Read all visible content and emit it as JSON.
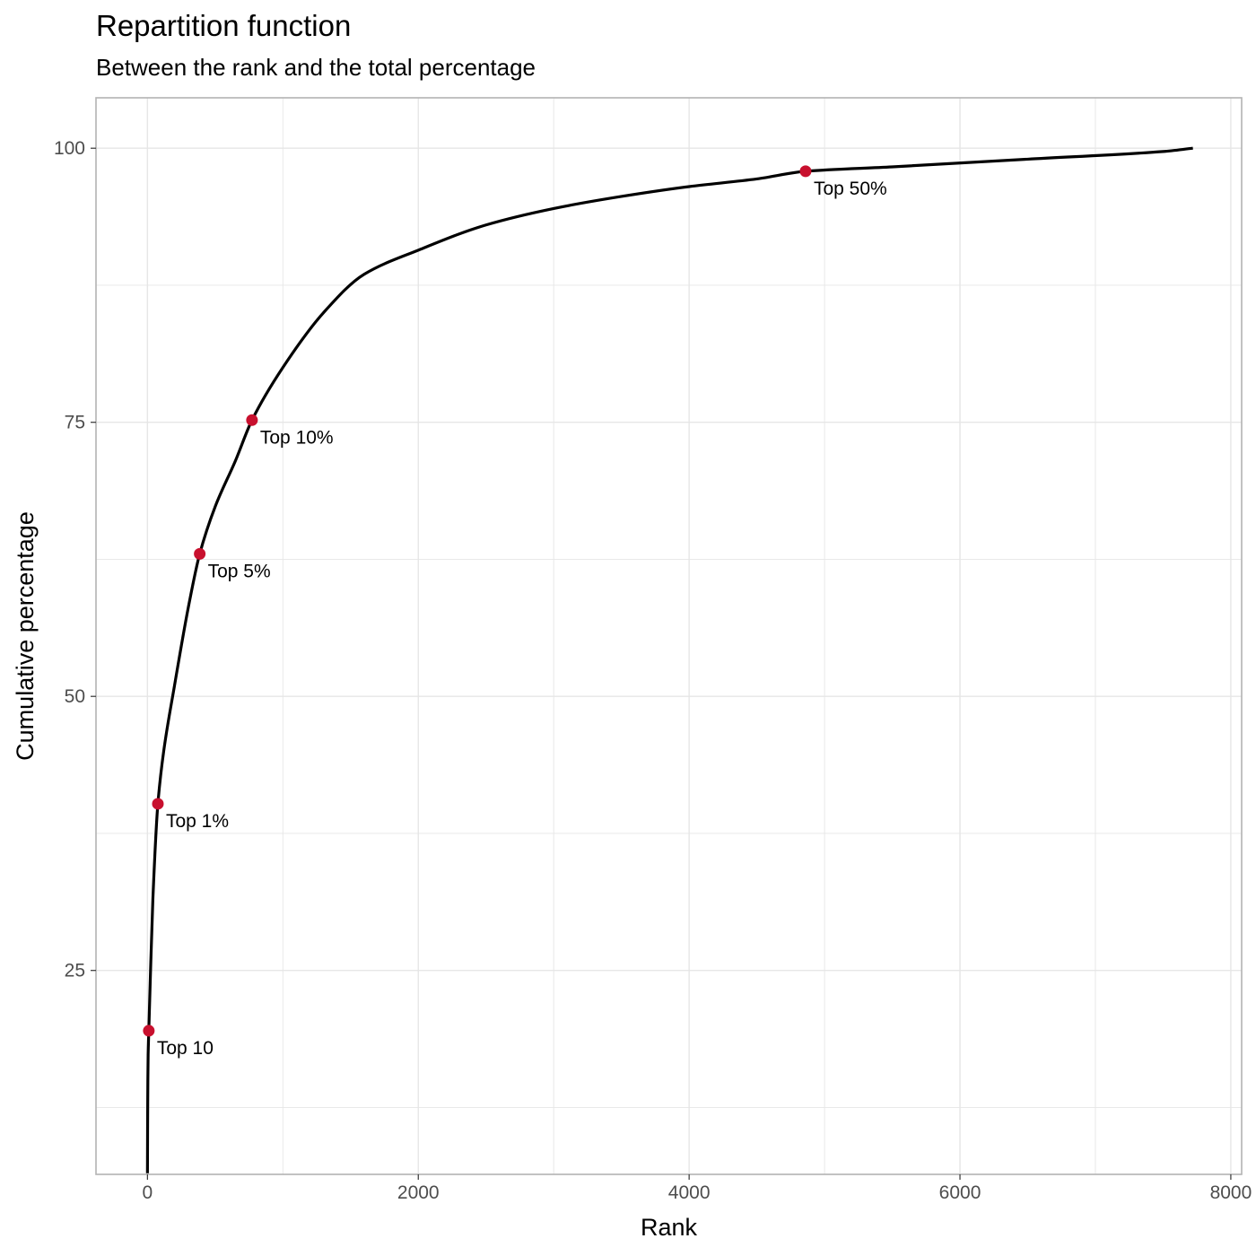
{
  "chart_data": {
    "type": "line",
    "title": "Repartition function",
    "subtitle": "Between the rank and the total percentage",
    "xlabel": "Rank",
    "ylabel": "Cumulative percentage",
    "xlim": [
      -380,
      8080
    ],
    "ylim": [
      6.4,
      104.6
    ],
    "x_ticks": [
      0,
      2000,
      4000,
      6000,
      8000
    ],
    "y_ticks": [
      25,
      50,
      75,
      100
    ],
    "grid": true,
    "colors": {
      "line": "#000000",
      "points": "#c8102e",
      "grid": "#e6e6e6",
      "panel_border": "#b3b3b3"
    },
    "series": [
      {
        "x": [
          0,
          1,
          2,
          3,
          5,
          10,
          20,
          40,
          77,
          120,
          200,
          300,
          386,
          500,
          650,
          772,
          1000,
          1300,
          1600,
          2000,
          2500,
          3000,
          3500,
          4000,
          4500,
          4860,
          5500,
          6500,
          7500,
          7720
        ],
        "y": [
          6.5,
          10.5,
          13.0,
          15.0,
          17.3,
          19.5,
          23.8,
          31.5,
          40.2,
          45.0,
          51.0,
          58.0,
          63.0,
          67.3,
          71.5,
          75.2,
          80.0,
          85.0,
          88.5,
          90.7,
          93.0,
          94.5,
          95.6,
          96.5,
          97.2,
          97.9,
          98.3,
          99.0,
          99.7,
          100.0
        ]
      }
    ],
    "labeled_points": [
      {
        "label": "Top 10",
        "x": 10,
        "y": 19.5
      },
      {
        "label": "Top 1%",
        "x": 77,
        "y": 40.2
      },
      {
        "label": "Top 5%",
        "x": 386,
        "y": 63.0
      },
      {
        "label": "Top 10%",
        "x": 772,
        "y": 75.2
      },
      {
        "label": "Top 50%",
        "x": 4860,
        "y": 97.9
      }
    ]
  }
}
